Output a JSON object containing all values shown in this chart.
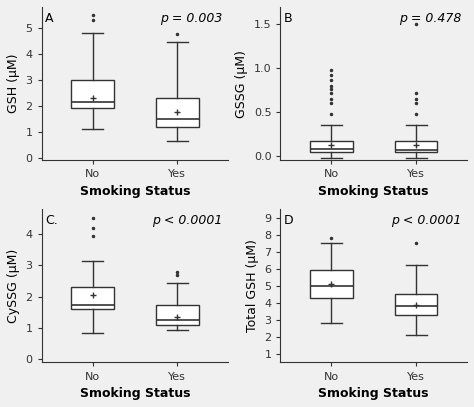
{
  "panels": [
    {
      "label": "A",
      "ylabel": "GSH (μM)",
      "xlabel": "Smoking Status",
      "ptext": "p = 0.003",
      "ylim": [
        -0.1,
        5.8
      ],
      "yticks": [
        0,
        1,
        2,
        3,
        4,
        5
      ],
      "xticks": [
        "No",
        "Yes"
      ],
      "no": {
        "median": 2.15,
        "q1": 1.9,
        "q3": 3.0,
        "whislo": 1.1,
        "whishi": 4.8,
        "mean": 2.3,
        "fliers_high": [
          5.3,
          5.5
        ],
        "fliers_low": []
      },
      "yes": {
        "median": 1.5,
        "q1": 1.2,
        "q3": 2.3,
        "whislo": 0.65,
        "whishi": 4.45,
        "mean": 1.75,
        "fliers_high": [
          4.75
        ],
        "fliers_low": []
      }
    },
    {
      "label": "B",
      "ylabel": "GSSG (μM)",
      "xlabel": "Smoking Status",
      "ptext": "p = 0.478",
      "ylim": [
        -0.05,
        1.7
      ],
      "yticks": [
        0.0,
        0.5,
        1.0,
        1.5
      ],
      "xticks": [
        "No",
        "Yes"
      ],
      "no": {
        "median": 0.08,
        "q1": 0.04,
        "q3": 0.17,
        "whislo": -0.02,
        "whishi": 0.35,
        "mean": 0.12,
        "fliers_high": [
          0.48,
          0.6,
          0.65,
          0.72,
          0.76,
          0.8,
          0.87,
          0.92,
          0.98
        ],
        "fliers_low": []
      },
      "yes": {
        "median": 0.07,
        "q1": 0.04,
        "q3": 0.17,
        "whislo": -0.02,
        "whishi": 0.35,
        "mean": 0.12,
        "fliers_high": [
          0.48,
          0.6,
          0.65,
          0.72,
          1.5
        ],
        "fliers_low": []
      }
    },
    {
      "label": "C.",
      "ylabel": "CySSG (μM)",
      "xlabel": "Smoking Status",
      "ptext": "p < 0.0001",
      "ylim": [
        -0.1,
        4.8
      ],
      "yticks": [
        0,
        1,
        2,
        3,
        4
      ],
      "xticks": [
        "No",
        "Yes"
      ],
      "no": {
        "median": 1.75,
        "q1": 1.6,
        "q3": 2.3,
        "whislo": 0.85,
        "whishi": 3.15,
        "mean": 2.05,
        "fliers_high": [
          3.95,
          4.2,
          4.5
        ],
        "fliers_low": []
      },
      "yes": {
        "median": 1.25,
        "q1": 1.1,
        "q3": 1.75,
        "whislo": 0.95,
        "whishi": 2.45,
        "mean": 1.35,
        "fliers_high": [
          2.7,
          2.8
        ],
        "fliers_low": []
      }
    },
    {
      "label": "D",
      "ylabel": "Total GSH (μM)",
      "xlabel": "Smoking Status",
      "ptext": "p < 0.0001",
      "ylim": [
        0.5,
        9.5
      ],
      "yticks": [
        1,
        2,
        3,
        4,
        5,
        6,
        7,
        8,
        9
      ],
      "xticks": [
        "No",
        "Yes"
      ],
      "no": {
        "median": 5.0,
        "q1": 4.3,
        "q3": 5.9,
        "whislo": 2.8,
        "whishi": 7.5,
        "mean": 5.1,
        "fliers_high": [
          7.8
        ],
        "fliers_low": []
      },
      "yes": {
        "median": 3.8,
        "q1": 3.3,
        "q3": 4.5,
        "whislo": 2.1,
        "whishi": 6.2,
        "mean": 3.9,
        "fliers_high": [
          7.5
        ],
        "fliers_low": []
      }
    }
  ],
  "background": "#f0f0f0",
  "box_color": "white",
  "box_edgecolor": "#333333",
  "median_color": "#333333",
  "whisker_color": "#333333",
  "flier_color": "#333333",
  "mean_color": "#333333",
  "ptext_fontsize": 9,
  "label_fontsize": 9,
  "tick_fontsize": 8,
  "title_fontsize": 10
}
